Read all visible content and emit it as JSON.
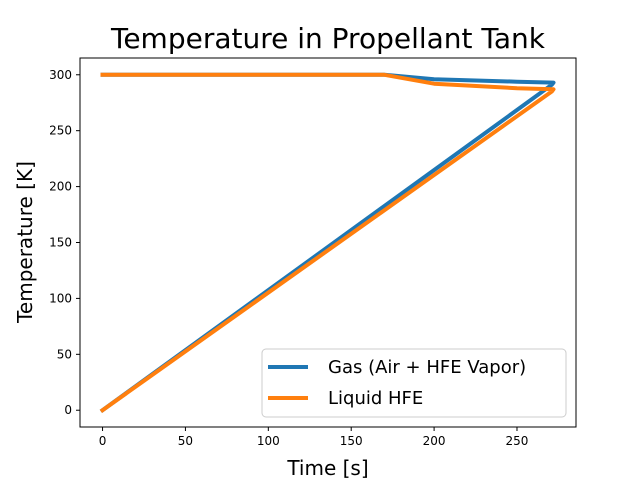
{
  "chart_data": {
    "type": "line",
    "title": "Temperature in Propellant Tank",
    "xlabel": "Time [s]",
    "ylabel": "Temperature [K]",
    "xlim": [
      -13.6,
      285.6
    ],
    "ylim": [
      -15,
      315
    ],
    "xticks": [
      0,
      50,
      100,
      150,
      200,
      250
    ],
    "yticks": [
      0,
      50,
      100,
      150,
      200,
      250,
      300
    ],
    "grid": false,
    "legend_position": "lower-right",
    "series": [
      {
        "name": "Gas (Air + HFE Vapor)",
        "color": "#1f77b4",
        "x": [
          0,
          271,
          272,
          250,
          200,
          170,
          0
        ],
        "y": [
          0,
          291,
          293,
          293.8,
          296,
          300,
          300
        ]
      },
      {
        "name": "Liquid HFE",
        "color": "#ff7f0e",
        "x": [
          0,
          271,
          272,
          250,
          200,
          170,
          0
        ],
        "y": [
          0,
          285,
          287,
          288,
          292,
          300,
          300
        ]
      }
    ]
  }
}
